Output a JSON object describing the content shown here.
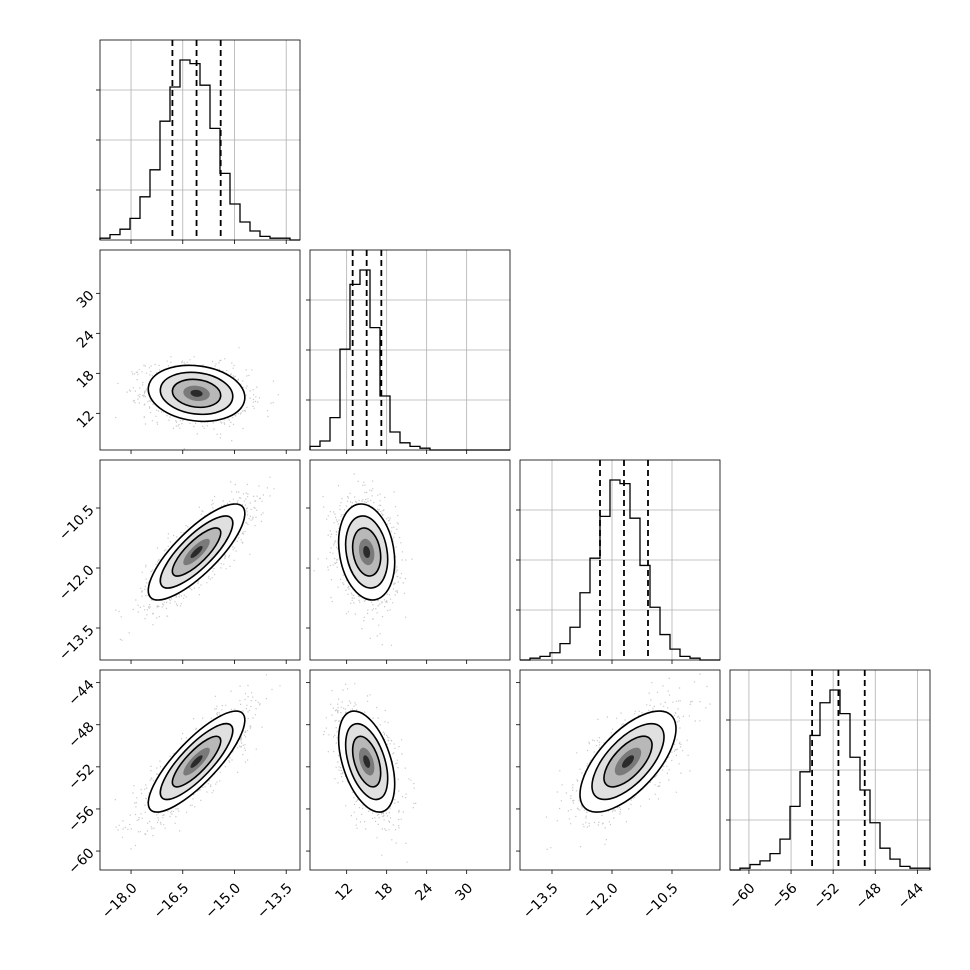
{
  "chart_data": {
    "type": "corner",
    "grid": true,
    "parameters": [
      {
        "index": 0,
        "range": [
          -18.9,
          -13.1
        ],
        "ticks": [
          -18.0,
          -16.5,
          -15.0,
          -13.5
        ],
        "tick_labels": [
          "−18.0",
          "−16.5",
          "−15.0",
          "−13.5"
        ],
        "quantiles": [
          -16.8,
          -16.1,
          -15.4
        ]
      },
      {
        "index": 1,
        "range": [
          6.5,
          36.5
        ],
        "ticks": [
          12,
          18,
          24,
          30
        ],
        "tick_labels": [
          "12",
          "18",
          "24",
          "30"
        ],
        "quantiles": [
          12.9,
          15.0,
          17.2
        ]
      },
      {
        "index": 2,
        "range": [
          -14.3,
          -9.3
        ],
        "ticks": [
          -13.5,
          -12.0,
          -10.5
        ],
        "tick_labels": [
          "−13.5",
          "−12.0",
          "−10.5"
        ],
        "quantiles": [
          -12.3,
          -11.7,
          -11.1
        ]
      },
      {
        "index": 3,
        "range": [
          -61.8,
          -42.8
        ],
        "ticks": [
          -60,
          -56,
          -52,
          -48,
          -44
        ],
        "tick_labels": [
          "−60",
          "−56",
          "−52",
          "−48",
          "−44"
        ],
        "quantiles": [
          -54.0,
          -51.5,
          -49.0
        ]
      }
    ],
    "histograms": [
      {
        "param": 0,
        "bins": 20,
        "counts": [
          1,
          3,
          6,
          12,
          24,
          39,
          66,
          85,
          100,
          98,
          86,
          62,
          37,
          20,
          10,
          5,
          2,
          1,
          1,
          0
        ]
      },
      {
        "param": 1,
        "bins": 20,
        "counts": [
          2,
          5,
          18,
          56,
          92,
          100,
          68,
          30,
          10,
          4,
          2,
          1,
          0,
          0,
          0,
          0,
          0,
          0,
          0,
          0
        ]
      },
      {
        "param": 2,
        "bins": 20,
        "counts": [
          0,
          1,
          2,
          4,
          9,
          18,
          37,
          56,
          79,
          99,
          97,
          78,
          52,
          29,
          14,
          6,
          2,
          1,
          0,
          0
        ]
      },
      {
        "param": 3,
        "bins": 20,
        "counts": [
          0,
          1,
          3,
          5,
          9,
          17,
          35,
          54,
          74,
          92,
          99,
          86,
          62,
          44,
          26,
          12,
          6,
          2,
          1,
          1
        ]
      }
    ],
    "pairs": [
      {
        "x": 1,
        "y": 0,
        "mean": [
          -16.1,
          15.0
        ],
        "sd": [
          0.7,
          2.1
        ],
        "corr": -0.15
      },
      {
        "x": 2,
        "y": 0,
        "mean": [
          -16.1,
          -11.6
        ],
        "sd": [
          0.7,
          0.6
        ],
        "corr": 0.8
      },
      {
        "x": 2,
        "y": 1,
        "mean": [
          15.0,
          -11.6
        ],
        "sd": [
          2.1,
          0.6
        ],
        "corr": -0.2
      },
      {
        "x": 3,
        "y": 0,
        "mean": [
          -16.1,
          -51.5
        ],
        "sd": [
          0.7,
          2.4
        ],
        "corr": 0.82
      },
      {
        "x": 3,
        "y": 1,
        "mean": [
          15.0,
          -51.5
        ],
        "sd": [
          2.1,
          2.4
        ],
        "corr": -0.45
      },
      {
        "x": 3,
        "y": 2,
        "mean": [
          -11.6,
          -51.5
        ],
        "sd": [
          0.6,
          2.4
        ],
        "corr": 0.65
      }
    ]
  }
}
